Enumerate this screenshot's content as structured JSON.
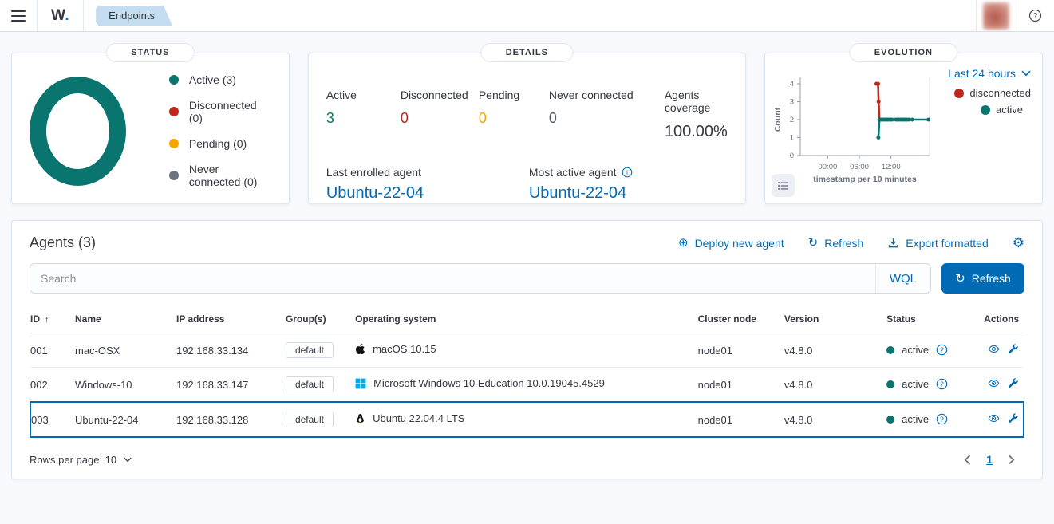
{
  "topbar": {
    "logo_w": "W",
    "logo_dot": ".",
    "breadcrumb": "Endpoints"
  },
  "colors": {
    "primary": "#006bb4",
    "active": "#0a756e",
    "disconnected": "#bd271e",
    "pending": "#f5a700",
    "never_connected": "#6d737e"
  },
  "icons": {
    "deploy": "⊕",
    "refresh": "↻",
    "gear": "⚙",
    "sort_asc": "↑"
  },
  "status_panel": {
    "title": "STATUS",
    "legend": [
      {
        "label": "Active (3)",
        "color": "#0a756e"
      },
      {
        "label": "Disconnected (0)",
        "color": "#bd271e"
      },
      {
        "label": "Pending (0)",
        "color": "#f5a700"
      },
      {
        "label": "Never connected (0)",
        "color": "#6d737e"
      }
    ]
  },
  "details_panel": {
    "title": "DETAILS",
    "stats": [
      {
        "label": "Active",
        "value": "3",
        "color": "#0a756e"
      },
      {
        "label": "Disconnected",
        "value": "0",
        "color": "#bd271e"
      },
      {
        "label": "Pending",
        "value": "0",
        "color": "#f5a700"
      },
      {
        "label": "Never connected",
        "value": "0",
        "color": "#57616e"
      },
      {
        "label": "Agents coverage",
        "value": "100.00%",
        "color": "#343741"
      }
    ],
    "last_enrolled_label": "Last enrolled agent",
    "last_enrolled_value": "Ubuntu-22-04",
    "most_active_label": "Most active agent",
    "most_active_value": "Ubuntu-22-04"
  },
  "evolution_panel": {
    "title": "EVOLUTION",
    "time_filter": "Last 24 hours",
    "legend": [
      {
        "label": "disconnected",
        "color": "#bd271e"
      },
      {
        "label": "active",
        "color": "#0a756e"
      }
    ],
    "chart_data": {
      "type": "line",
      "xlabel": "timestamp per 10 minutes",
      "ylabel": "Count",
      "ylim": [
        0,
        4
      ],
      "y_ticks": [
        0,
        1,
        2,
        3,
        4
      ],
      "xlim_hours": [
        -5.2,
        19.3
      ],
      "x_ticks": [
        {
          "label": "00:00",
          "hour": 0
        },
        {
          "label": "06:00",
          "hour": 6
        },
        {
          "label": "12:00",
          "hour": 12
        }
      ],
      "series": [
        {
          "name": "disconnected",
          "color": "#bd271e",
          "points": [
            [
              9.25,
              4
            ],
            [
              9.55,
              4
            ],
            [
              9.65,
              3
            ],
            [
              9.8,
              2
            ]
          ]
        },
        {
          "name": "active",
          "color": "#0a756e",
          "points": [
            [
              9.6,
              1
            ],
            [
              9.8,
              2
            ],
            [
              10.1,
              2
            ],
            [
              10.4,
              2
            ],
            [
              10.7,
              2
            ],
            [
              11.0,
              2
            ],
            [
              11.3,
              2
            ],
            [
              11.6,
              2
            ],
            [
              11.9,
              2
            ],
            [
              12.2,
              2
            ],
            [
              12.9,
              2
            ],
            [
              13.2,
              2
            ],
            [
              13.5,
              2
            ],
            [
              13.8,
              2
            ],
            [
              14.1,
              2
            ],
            [
              14.4,
              2
            ],
            [
              14.7,
              2
            ],
            [
              15.0,
              2
            ],
            [
              15.4,
              2
            ],
            [
              16.0,
              2
            ],
            [
              19.1,
              2
            ]
          ]
        }
      ]
    }
  },
  "agents": {
    "title": "Agents (3)",
    "toolbar": {
      "deploy": "Deploy new agent",
      "refresh": "Refresh",
      "export": "Export formatted"
    },
    "search": {
      "placeholder": "Search",
      "wql_label": "WQL",
      "refresh_button": "Refresh"
    },
    "table": {
      "headers": [
        "ID",
        "Name",
        "IP address",
        "Group(s)",
        "Operating system",
        "Cluster node",
        "Version",
        "Status",
        "Actions"
      ],
      "sort_column": "ID",
      "sort_direction": "asc",
      "rows": [
        {
          "id": "001",
          "name": "mac-OSX",
          "ip": "192.168.33.134",
          "groups": [
            "default"
          ],
          "os_icon": "apple",
          "os": "macOS 10.15",
          "cluster_node": "node01",
          "version": "v4.8.0",
          "status": "active",
          "selected": false
        },
        {
          "id": "002",
          "name": "Windows-10",
          "ip": "192.168.33.147",
          "groups": [
            "default"
          ],
          "os_icon": "windows",
          "os": "Microsoft Windows 10 Education 10.0.19045.4529",
          "cluster_node": "node01",
          "version": "v4.8.0",
          "status": "active",
          "selected": false
        },
        {
          "id": "003",
          "name": "Ubuntu-22-04",
          "ip": "192.168.33.128",
          "groups": [
            "default"
          ],
          "os_icon": "linux",
          "os": "Ubuntu 22.04.4 LTS",
          "cluster_node": "node01",
          "version": "v4.8.0",
          "status": "active",
          "selected": true
        }
      ]
    },
    "footer": {
      "rows_per_page_label": "Rows per page: 10",
      "current_page": "1"
    }
  }
}
